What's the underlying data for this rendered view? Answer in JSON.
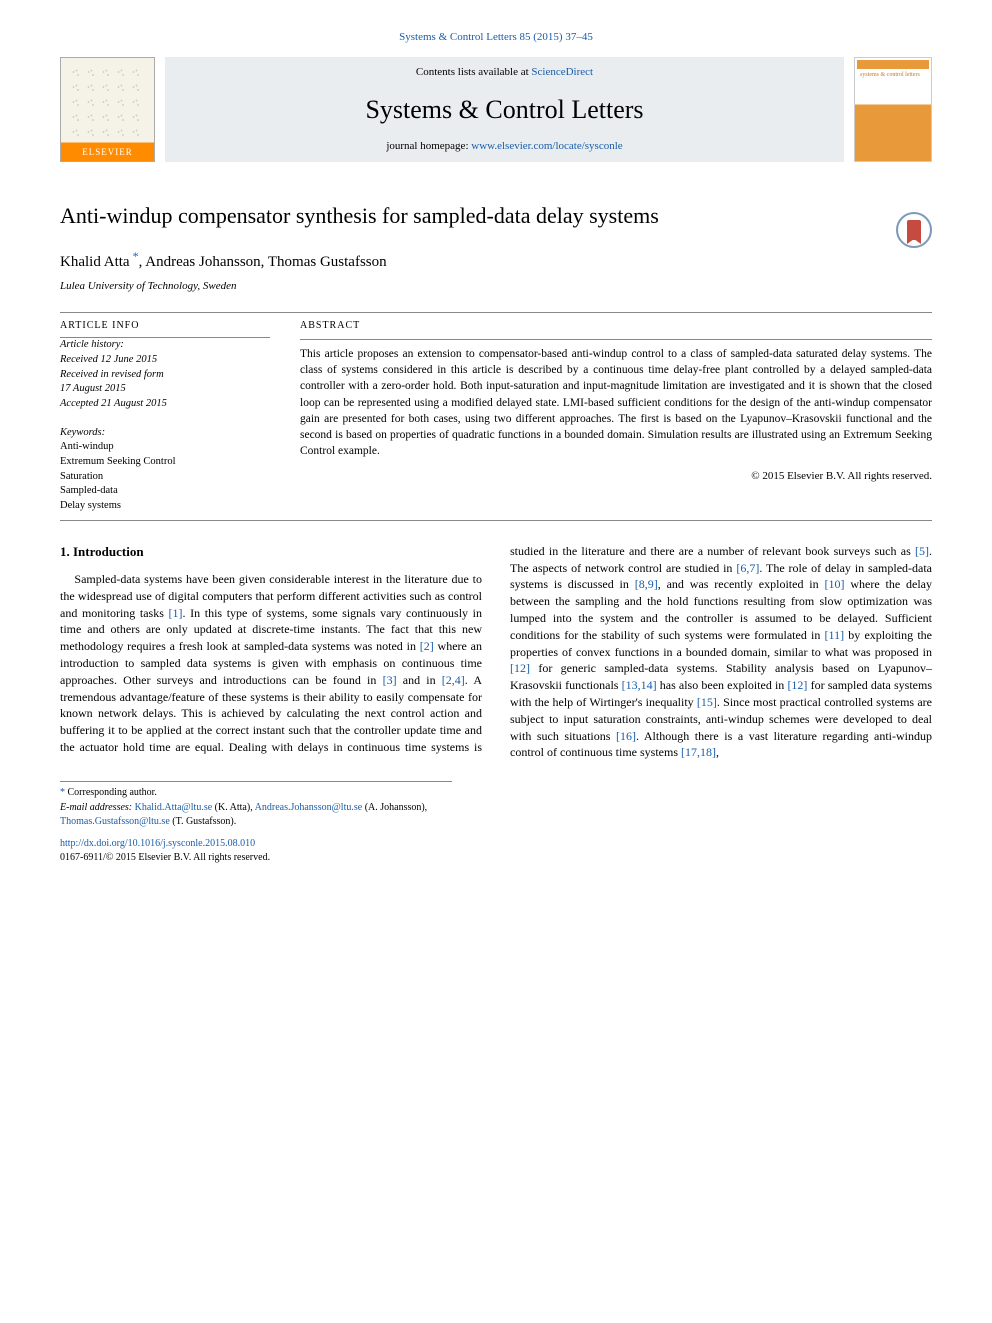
{
  "header_citation": "Systems & Control Letters 85 (2015) 37–45",
  "masthead": {
    "contents_prefix": "Contents lists available at ",
    "contents_link": "ScienceDirect",
    "journal": "Systems & Control Letters",
    "homepage_prefix": "journal homepage: ",
    "homepage_link": "www.elsevier.com/locate/sysconle",
    "elsevier_label": "ELSEVIER",
    "cover_text": "systems & control letters"
  },
  "title": "Anti-windup compensator synthesis for sampled-data delay systems",
  "authors": {
    "a1": "Khalid Atta",
    "a2": "Andreas Johansson, Thomas Gustafsson"
  },
  "affiliation": "Lulea University of Technology, Sweden",
  "info": {
    "heading_info": "ARTICLE INFO",
    "heading_abs": "ABSTRACT",
    "history_label": "Article history:",
    "h1": "Received 12 June 2015",
    "h2": "Received in revised form",
    "h3": "17 August 2015",
    "h4": "Accepted 21 August 2015",
    "kw_label": "Keywords:",
    "k1": "Anti-windup",
    "k2": "Extremum Seeking Control",
    "k3": "Saturation",
    "k4": "Sampled-data",
    "k5": "Delay systems"
  },
  "abstract": "This article proposes an extension to compensator-based anti-windup control to a class of sampled-data saturated delay systems. The class of systems considered in this article is described by a continuous time delay-free plant controlled by a delayed sampled-data controller with a zero-order hold. Both input-saturation and input-magnitude limitation are investigated and it is shown that the closed loop can be represented using a modified delayed state. LMI-based sufficient conditions for the design of the anti-windup compensator gain are presented for both cases, using two different approaches. The first is based on the Lyapunov–Krasovskii functional and the second is based on properties of quadratic functions in a bounded domain. Simulation results are illustrated using an Extremum Seeking Control example.",
  "copyright": "© 2015 Elsevier B.V. All rights reserved.",
  "intro_heading": "1. Introduction",
  "body": "Sampled-data systems have been given considerable interest in the literature due to the widespread use of digital computers that perform different activities such as control and monitoring tasks [1]. In this type of systems, some signals vary continuously in time and others are only updated at discrete-time instants. The fact that this new methodology requires a fresh look at sampled-data systems was noted in [2] where an introduction to sampled data systems is given with emphasis on continuous time approaches. Other surveys and introductions can be found in [3] and in [2,4]. A tremendous advantage/feature of these systems is their ability to easily compensate for known network delays. This is achieved by calculating the next control action and buffering it to be applied at the correct instant such that the controller update time and the actuator hold time are equal. Dealing with delays in continuous time systems is studied in the literature and there are a number of relevant book surveys such as [5]. The aspects of network control are studied in [6,7]. The role of delay in sampled-data systems is discussed in [8,9], and was recently exploited in [10] where the delay between the sampling and the hold functions resulting from slow optimization was lumped into the system and the controller is assumed to be delayed. Sufficient conditions for the stability of such systems were formulated in [11] by exploiting the properties of convex functions in a bounded domain, similar to what was proposed in [12] for generic sampled-data systems. Stability analysis based on Lyapunov–Krasovskii functionals [13,14] has also been exploited in [12] for sampled data systems with the help of Wirtinger's inequality [15]. Since most practical controlled systems are subject to input saturation constraints, anti-windup schemes were developed to deal with such situations [16]. Although there is a vast literature regarding anti-windup control of continuous time systems [17,18],",
  "footnotes": {
    "corr": "Corresponding author.",
    "email_label": "E-mail addresses:",
    "e1": "Khalid.Atta@ltu.se",
    "e1_who": "(K. Atta),",
    "e2": "Andreas.Johansson@ltu.se",
    "e2_who": "(A. Johansson),",
    "e3": "Thomas.Gustafsson@ltu.se",
    "e3_who": "(T. Gustafsson)."
  },
  "doi": "http://dx.doi.org/10.1016/j.sysconle.2015.08.010",
  "issn": "0167-6911/© 2015 Elsevier B.V. All rights reserved."
}
